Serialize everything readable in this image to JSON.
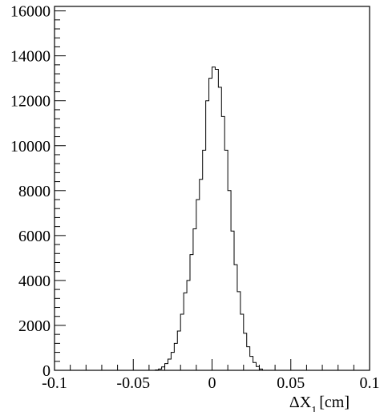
{
  "chart_data": {
    "type": "histogram",
    "title": "",
    "xlabel": "ΔX",
    "xlabel_subscript": "1",
    "xlabel_unit": "[cm]",
    "ylabel": "",
    "xlim": [
      -0.1,
      0.1
    ],
    "ylim": [
      0,
      16200
    ],
    "grid": false,
    "legend": "none",
    "x_ticks": [
      {
        "value": -0.1,
        "label": "-0.1"
      },
      {
        "value": -0.05,
        "label": "-0.05"
      },
      {
        "value": 0,
        "label": "0"
      },
      {
        "value": 0.05,
        "label": "0.05"
      },
      {
        "value": 0.1,
        "label": "0.1"
      }
    ],
    "y_ticks": [
      {
        "value": 0,
        "label": "0"
      },
      {
        "value": 2000,
        "label": "2000"
      },
      {
        "value": 4000,
        "label": "4000"
      },
      {
        "value": 6000,
        "label": "6000"
      },
      {
        "value": 8000,
        "label": "8000"
      },
      {
        "value": 10000,
        "label": "10000"
      },
      {
        "value": 12000,
        "label": "12000"
      },
      {
        "value": 14000,
        "label": "14000"
      },
      {
        "value": 16000,
        "label": "16000"
      }
    ],
    "bin_width": 0.002,
    "bin_start": -0.036,
    "bins": [
      {
        "x": -0.036,
        "count": 20
      },
      {
        "x": -0.034,
        "count": 60
      },
      {
        "x": -0.032,
        "count": 150
      },
      {
        "x": -0.03,
        "count": 300
      },
      {
        "x": -0.028,
        "count": 500
      },
      {
        "x": -0.026,
        "count": 800
      },
      {
        "x": -0.024,
        "count": 1200
      },
      {
        "x": -0.022,
        "count": 1750
      },
      {
        "x": -0.02,
        "count": 2500
      },
      {
        "x": -0.018,
        "count": 3450
      },
      {
        "x": -0.016,
        "count": 4000
      },
      {
        "x": -0.014,
        "count": 5150
      },
      {
        "x": -0.012,
        "count": 6300
      },
      {
        "x": -0.01,
        "count": 7600
      },
      {
        "x": -0.008,
        "count": 8500
      },
      {
        "x": -0.006,
        "count": 9800
      },
      {
        "x": -0.004,
        "count": 12000
      },
      {
        "x": -0.002,
        "count": 13000
      },
      {
        "x": 0.0,
        "count": 13500
      },
      {
        "x": 0.002,
        "count": 13400
      },
      {
        "x": 0.004,
        "count": 12600
      },
      {
        "x": 0.006,
        "count": 11300
      },
      {
        "x": 0.008,
        "count": 9800
      },
      {
        "x": 0.01,
        "count": 8000
      },
      {
        "x": 0.012,
        "count": 6200
      },
      {
        "x": 0.014,
        "count": 4700
      },
      {
        "x": 0.016,
        "count": 3500
      },
      {
        "x": 0.018,
        "count": 2500
      },
      {
        "x": 0.02,
        "count": 1650
      },
      {
        "x": 0.022,
        "count": 1050
      },
      {
        "x": 0.024,
        "count": 620
      },
      {
        "x": 0.026,
        "count": 350
      },
      {
        "x": 0.028,
        "count": 170
      },
      {
        "x": 0.03,
        "count": 60
      }
    ]
  }
}
